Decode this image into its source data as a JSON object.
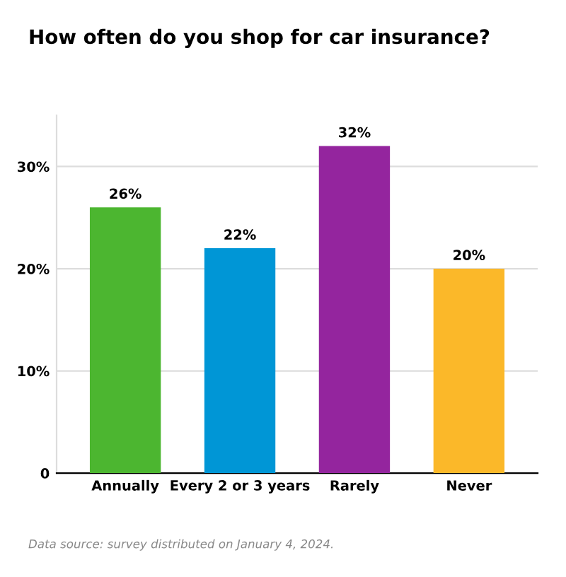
{
  "chart_data": {
    "type": "bar",
    "title": "How often do you shop for car insurance?",
    "categories": [
      "Annually",
      "Every 2 or 3 years",
      "Rarely",
      "Never"
    ],
    "values": [
      26,
      22,
      32,
      20
    ],
    "colors": [
      "#4cb630",
      "#0096d6",
      "#94259e",
      "#fbb829"
    ],
    "value_labels": [
      "26%",
      "22%",
      "32%",
      "20%"
    ],
    "ylim": [
      0,
      35
    ],
    "yticks": [
      0,
      {
        "value": 10,
        "label": "10%"
      },
      {
        "value": 20,
        "label": "20%"
      },
      {
        "value": 30,
        "label": "30%"
      }
    ],
    "grid": "y",
    "annotations": [
      "Data source: survey distributed on January 4, 2024."
    ]
  }
}
